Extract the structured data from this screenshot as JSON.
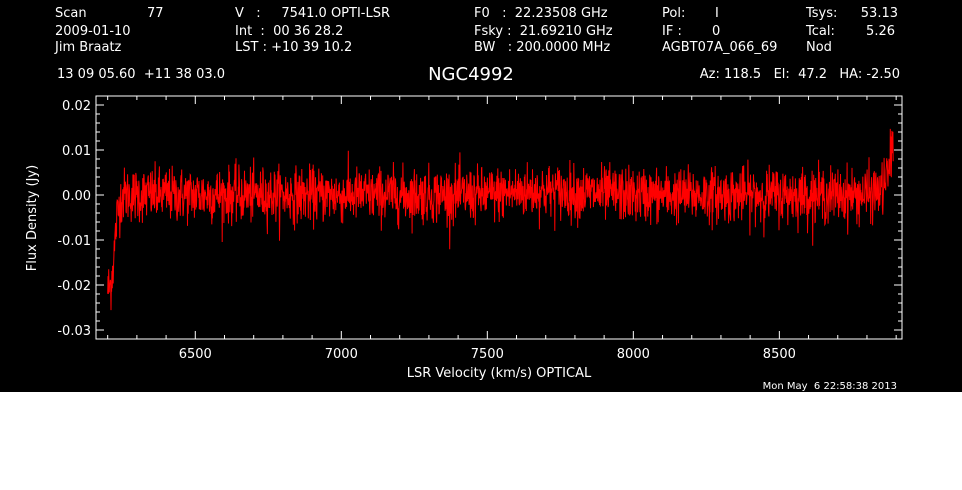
{
  "header": {
    "col1": [
      "Scan",
      "77",
      "2009-01-10",
      "Jim Braatz"
    ],
    "col2": [
      "V   :     7541.0 OPTI-LSR",
      "Int  :  00 36 28.2",
      "LST : +10 39 10.2"
    ],
    "col3": [
      "F0   :  22.23508 GHz",
      "Fsky :  21.69210 GHz",
      "BW   : 200.0000 MHz"
    ],
    "col4": [
      "Pol:",
      "I",
      "IF :",
      "0",
      "AGBT07A_066_69"
    ],
    "col5": [
      "Tsys:",
      "53.13",
      "Tcal:",
      "5.26",
      "Nod"
    ],
    "coords": "13 09 05.60  +11 38 03.0",
    "source": "NGC4992",
    "azelha": "Az: 118.5   El:  47.2   HA: -2.50"
  },
  "timestamp": "Mon May  6 22:58:38 2013",
  "colors": {
    "background": "#000000",
    "trace": "#ff0000",
    "axes": "#ffffff"
  },
  "chart_data": {
    "type": "line",
    "title": "NGC4992",
    "xlabel": "LSR Velocity (km/s) OPTICAL",
    "ylabel": "Flux Density (Jy)",
    "xlim": [
      6160,
      8920
    ],
    "ylim": [
      -0.032,
      0.022
    ],
    "x_ticks": [
      6500,
      7000,
      7500,
      8000,
      8500
    ],
    "x_tick_labels": [
      "6500",
      "7000",
      "7500",
      "8000",
      "8500"
    ],
    "y_ticks": [
      0.02,
      0.01,
      0.0,
      -0.01,
      -0.02,
      -0.03
    ],
    "y_tick_labels": [
      "0.02",
      "0.01",
      "0.00",
      "-0.01",
      "-0.02",
      "-0.03"
    ],
    "grid": false,
    "series": [
      {
        "color": "#ff0000",
        "noise_sigma": 0.003,
        "x": [
          6200,
          6210,
          6220,
          6230,
          6240,
          6250,
          6500,
          7000,
          7500,
          7650,
          8000,
          8500,
          8800,
          8850,
          8870,
          8880,
          8890
        ],
        "y": [
          -0.021,
          -0.02,
          -0.015,
          -0.006,
          -0.002,
          0.0,
          0.0,
          0.0,
          0.0,
          0.001,
          0.0,
          0.0,
          0.0,
          0.001,
          0.004,
          0.008,
          0.012
        ]
      }
    ]
  }
}
